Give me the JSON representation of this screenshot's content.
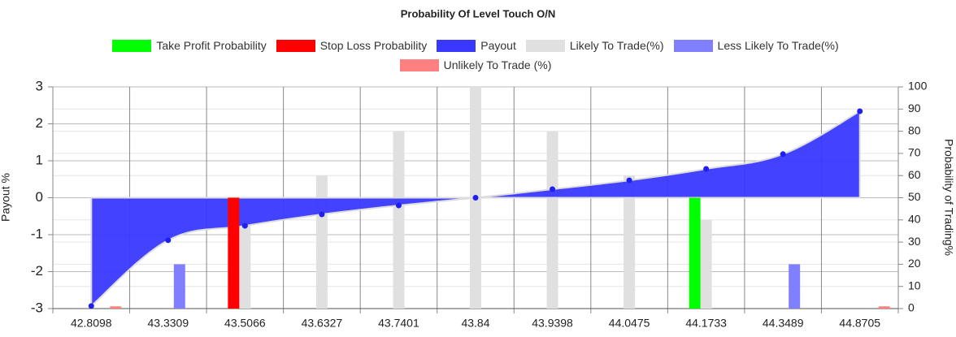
{
  "chart_data": {
    "type": "bar-area",
    "title": "Probability Of Level Touch  O/N",
    "y_label": "Payout %",
    "y2_label": "Probability of Trading%",
    "categories": [
      "42.8098",
      "43.3309",
      "43.5066",
      "43.6327",
      "43.7401",
      "43.84",
      "43.9398",
      "44.0475",
      "44.1733",
      "44.3489",
      "44.8705"
    ],
    "series": [
      {
        "name": "Take Profit Probability",
        "color": "#00ff00",
        "axis": "y2",
        "values": [
          null,
          null,
          null,
          null,
          null,
          null,
          null,
          null,
          50,
          null,
          null
        ]
      },
      {
        "name": "Stop Loss Probability",
        "color": "#ff0000",
        "axis": "y2",
        "values": [
          null,
          null,
          50,
          null,
          null,
          null,
          null,
          null,
          null,
          null,
          null
        ]
      },
      {
        "name": "Payout",
        "color": "#3838ff",
        "values": [
          -2.93,
          -1.15,
          -0.76,
          -0.45,
          -0.21,
          0,
          0.23,
          0.47,
          0.78,
          1.18,
          2.34
        ]
      },
      {
        "name": "Likely To Trade(%)",
        "color": "#e0e0e0",
        "axis": "y2",
        "values": [
          null,
          null,
          40,
          60,
          80,
          100,
          80,
          60,
          40,
          null,
          null
        ]
      },
      {
        "name": "Less Likely To Trade(%)",
        "color": "#8080ff",
        "axis": "y2",
        "values": [
          null,
          20,
          null,
          null,
          null,
          null,
          null,
          null,
          null,
          20,
          null
        ]
      },
      {
        "name": "Unlikely To Trade (%)",
        "color": "#ff8080",
        "axis": "y2",
        "values": [
          1,
          null,
          null,
          null,
          null,
          null,
          null,
          null,
          null,
          null,
          1
        ]
      }
    ],
    "ylim": [
      -3,
      3
    ],
    "yticks": [
      -3,
      -2,
      -1,
      0,
      1,
      2,
      3
    ],
    "y2lim": [
      0,
      100
    ],
    "y2ticks": [
      0,
      10,
      20,
      30,
      40,
      50,
      60,
      70,
      80,
      90,
      100
    ],
    "grid": true
  }
}
